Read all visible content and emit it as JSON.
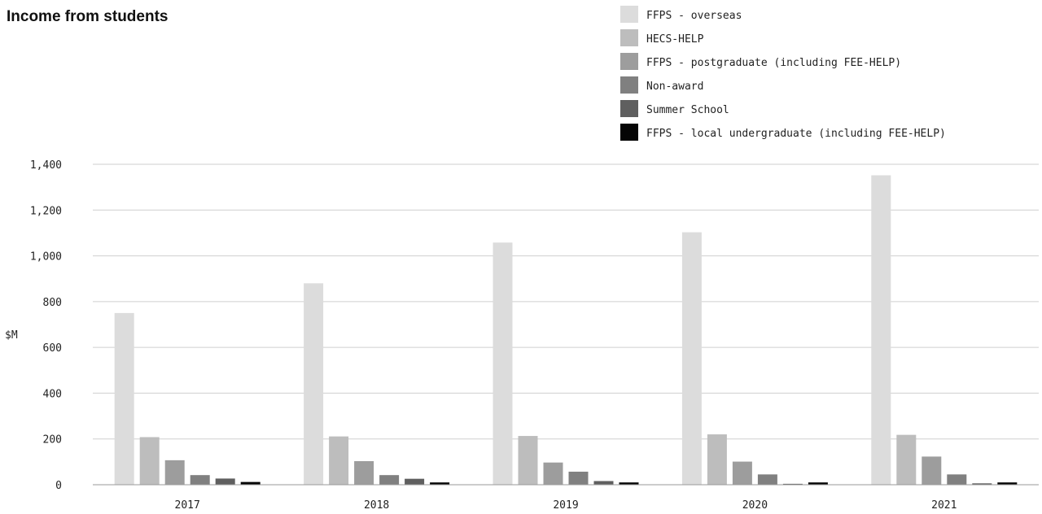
{
  "chart_data": {
    "type": "bar",
    "title": "Income from students",
    "ylabel": "$M",
    "xlabel": "",
    "ylim": [
      0,
      1400
    ],
    "yticks": [
      0,
      200,
      400,
      600,
      800,
      1000,
      1200,
      1400
    ],
    "ytick_labels": [
      "0",
      "200",
      "400",
      "600",
      "800",
      "1,000",
      "1,200",
      "1,400"
    ],
    "categories": [
      "2017",
      "2018",
      "2019",
      "2020",
      "2021"
    ],
    "grid": true,
    "legend_position": "top-right",
    "series": [
      {
        "name": "FFPS - overseas",
        "color": "#dcdcdc",
        "values": [
          750,
          880,
          1058,
          1103,
          1352
        ]
      },
      {
        "name": "HECS-HELP",
        "color": "#bdbdbd",
        "values": [
          208,
          211,
          213,
          220,
          218
        ]
      },
      {
        "name": "FFPS - postgraduate (including FEE-HELP)",
        "color": "#9d9d9d",
        "values": [
          107,
          103,
          97,
          101,
          123
        ]
      },
      {
        "name": "Non-award",
        "color": "#808080",
        "values": [
          42,
          42,
          57,
          45,
          45
        ]
      },
      {
        "name": "Summer School",
        "color": "#5f5f5f",
        "values": [
          27,
          26,
          16,
          4,
          6
        ]
      },
      {
        "name": "FFPS - local undergraduate (including FEE-HELP)",
        "color": "#050505",
        "values": [
          12,
          10,
          10,
          10,
          10
        ]
      }
    ]
  }
}
